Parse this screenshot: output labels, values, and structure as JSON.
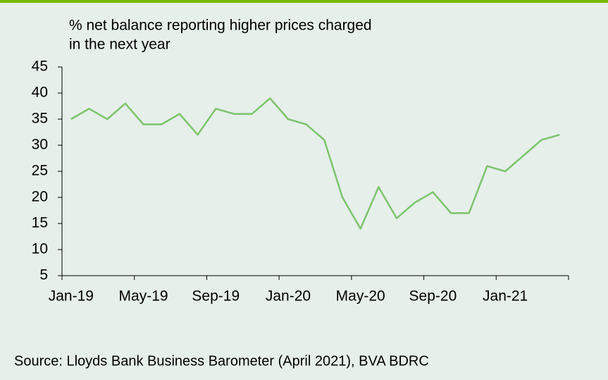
{
  "chart_data": {
    "type": "line",
    "title": [
      "% net balance reporting higher prices charged",
      "in the next year"
    ],
    "categories": [
      "Jan-19",
      null,
      null,
      null,
      "May-19",
      null,
      null,
      null,
      "Sep-19",
      null,
      null,
      null,
      "Jan-20",
      null,
      null,
      null,
      "May-20",
      null,
      null,
      null,
      "Sep-20",
      null,
      null,
      null,
      "Jan-21",
      null,
      null,
      null
    ],
    "series": [
      {
        "name": "% net balance reporting higher prices charged in the next year",
        "color": "#7cc46c",
        "values": [
          35,
          37,
          35,
          38,
          34,
          34,
          36,
          32,
          37,
          36,
          36,
          39,
          35,
          34,
          31,
          20,
          14,
          22,
          16,
          19,
          21,
          17,
          17,
          26,
          25,
          28,
          31,
          32
        ]
      }
    ],
    "ylim": [
      5,
      45
    ],
    "yticks": [
      5,
      10,
      15,
      20,
      25,
      30,
      35,
      40,
      45
    ],
    "grid": false,
    "source": "Source: Lloyds Bank Business Barometer (April 2021), BVA BDRC"
  }
}
